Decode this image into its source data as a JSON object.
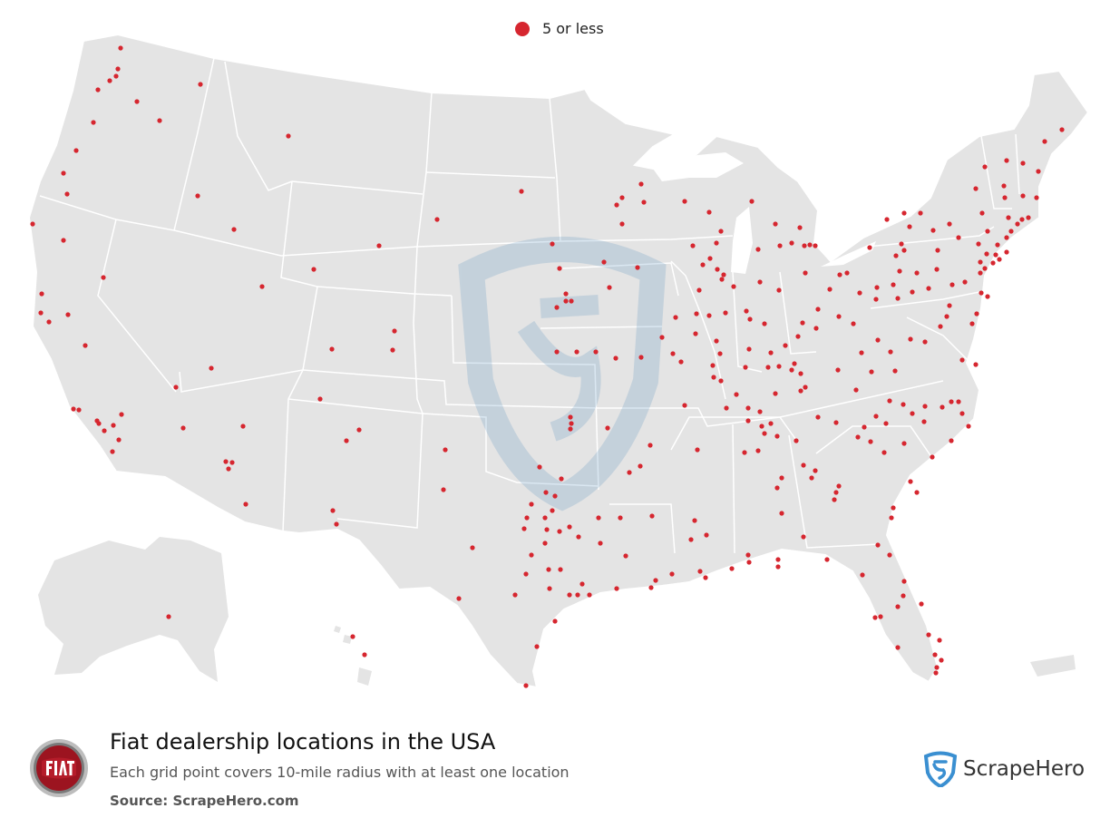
{
  "legend": {
    "label": "5 or less",
    "color": "#d6262f"
  },
  "footer": {
    "title": "Fiat dealership locations in the USA",
    "subtitle": "Each grid point covers 10-mile radius with at least one location",
    "source": "Source: ScrapeHero.com"
  },
  "brand": {
    "name": "ScrapeHero",
    "icon": "scrapehero-shield-icon",
    "color": "#3a8fd1"
  },
  "logo": {
    "text": "FIAT",
    "icon": "fiat-badge-icon",
    "color": "#9c1420"
  },
  "colors": {
    "land": "#e4e4e4",
    "border": "#ffffff",
    "dot": "#d6262f"
  }
}
